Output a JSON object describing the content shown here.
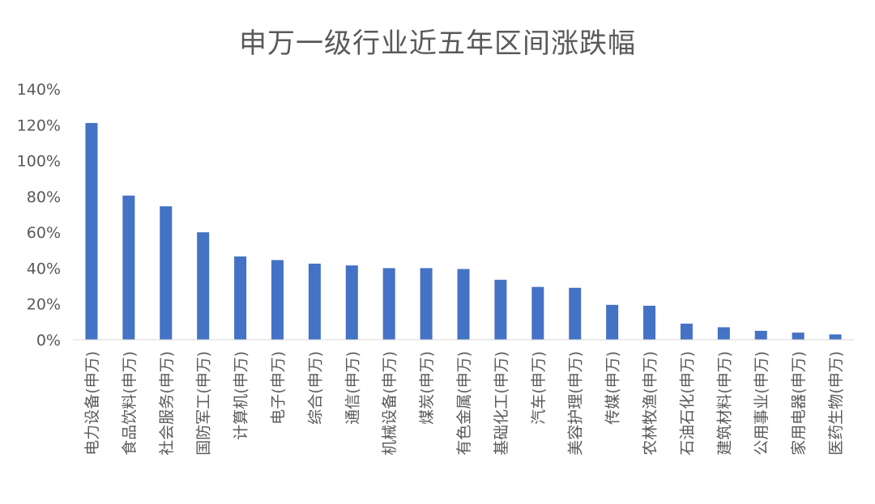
{
  "chart_data": {
    "type": "bar",
    "title": "申万一级行业近五年区间涨跌幅",
    "xlabel": "",
    "ylabel": "",
    "ylim": [
      0,
      140
    ],
    "y_ticks": [
      "0%",
      "20%",
      "40%",
      "60%",
      "80%",
      "100%",
      "120%",
      "140%"
    ],
    "grid": false,
    "legend": "none",
    "bar_color": "#4472C4",
    "categories": [
      "电力设备(申万)",
      "食品饮料(申万)",
      "社会服务(申万)",
      "国防军工(申万)",
      "计算机(申万)",
      "电子(申万)",
      "综合(申万)",
      "通信(申万)",
      "机械设备(申万)",
      "煤炭(申万)",
      "有色金属(申万)",
      "基础化工(申万)",
      "汽车(申万)",
      "美容护理(申万)",
      "传媒(申万)",
      "农林牧渔(申万)",
      "石油石化(申万)",
      "建筑材料(申万)",
      "公用事业(申万)",
      "家用电器(申万)",
      "医药生物(申万)"
    ],
    "values": [
      121,
      80.5,
      74.5,
      60,
      46.5,
      44.5,
      42.5,
      41.5,
      40,
      40,
      39.5,
      33.5,
      29.5,
      29,
      19.5,
      19,
      9,
      7,
      5,
      4,
      3
    ]
  }
}
